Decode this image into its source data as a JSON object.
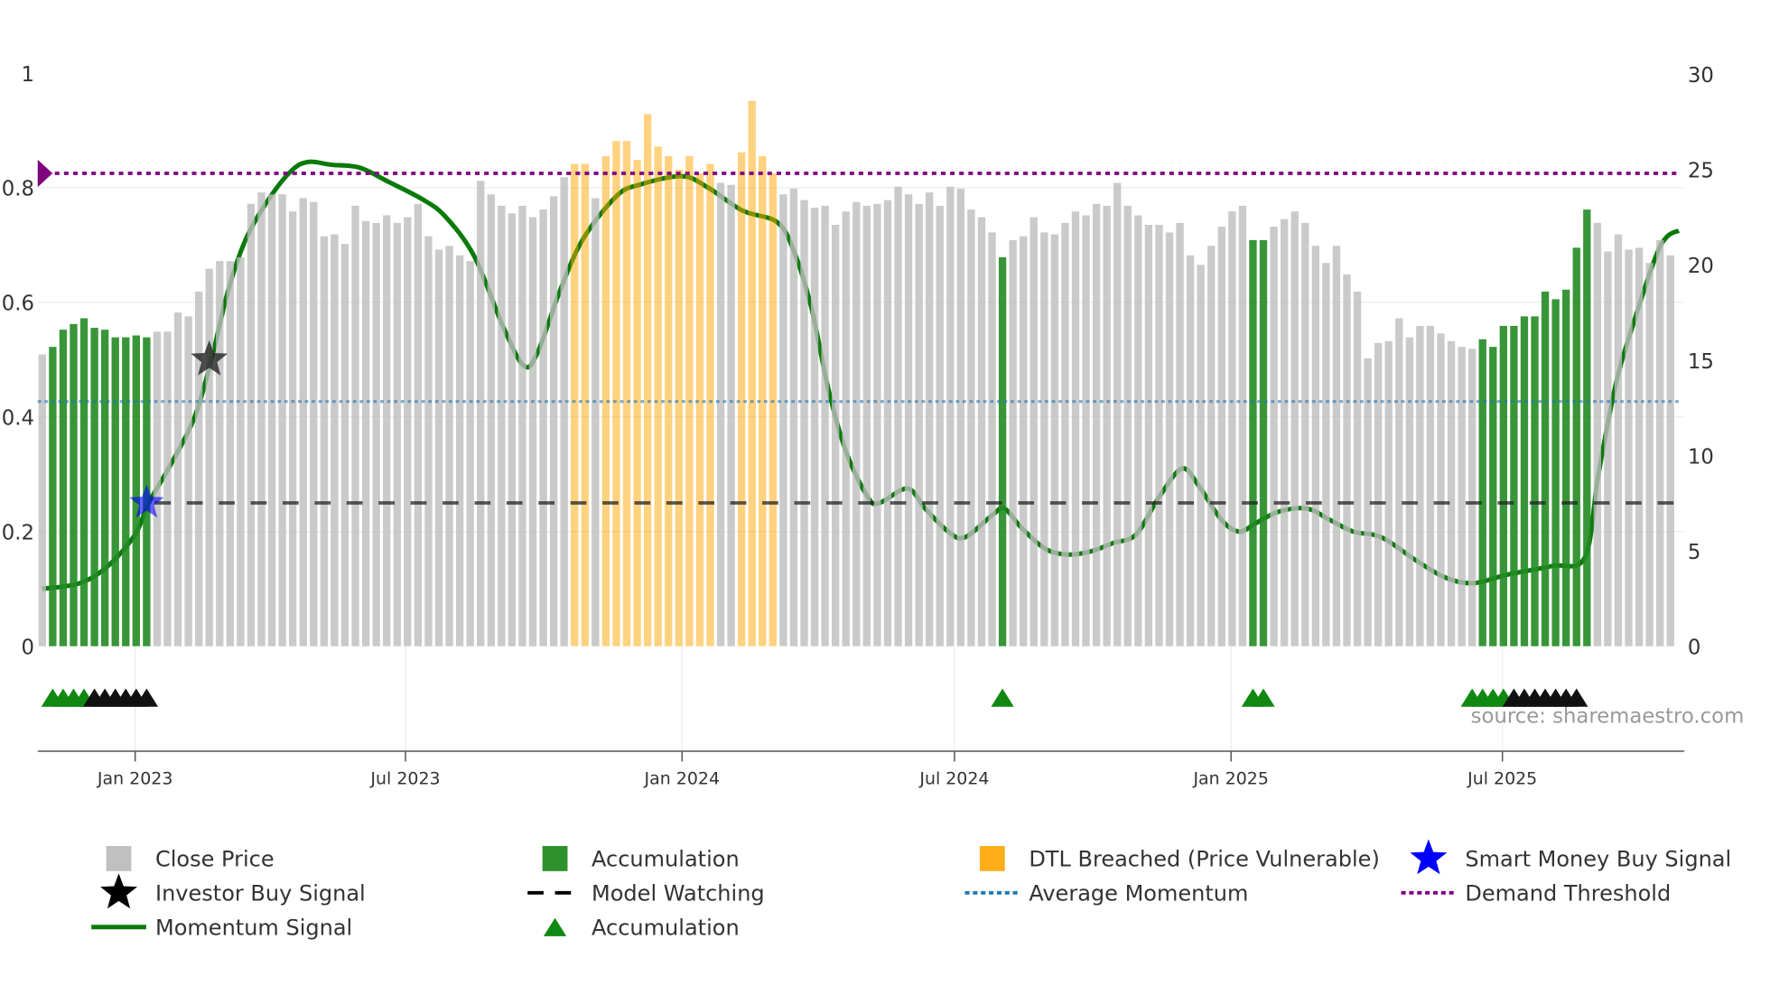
{
  "chart_data": {
    "type": "bar",
    "title": "",
    "source": "source: sharemaestro.com",
    "left_axis": {
      "range": [
        0,
        1
      ],
      "ticks": [
        "0",
        "0.2",
        "0.4",
        "0.6",
        "0.8",
        "1"
      ]
    },
    "right_axis": {
      "range": [
        0,
        30
      ],
      "ticks": [
        "0",
        "5",
        "10",
        "15",
        "20",
        "25",
        "30"
      ]
    },
    "x_ticks": [
      {
        "label": "Jan 2023",
        "week": 8.9
      },
      {
        "label": "Jul 2023",
        "week": 34.8
      },
      {
        "label": "Jan 2024",
        "week": 61.3
      },
      {
        "label": "Jul 2024",
        "week": 87.4
      },
      {
        "label": "Jan 2025",
        "week": 113.9
      },
      {
        "label": "Jul 2025",
        "week": 139.9
      }
    ],
    "bar_type_legend": {
      "c": "Close Price",
      "a": "Accumulation",
      "d": "DTL Breached (Price Vulnerable)"
    },
    "bar_types": "caaaaaaaaaaccccccccccccccccccccccccccccccccccccccccddcdddddddddddccddddcccccccccccccccccccccacccccccccccccccccccccccaaccccccccccccccccccccaaaaaaaaaaaccccccccc",
    "close_prices": [
      15.3,
      15.7,
      16.6,
      16.9,
      17.2,
      16.7,
      16.6,
      16.2,
      16.2,
      16.3,
      16.2,
      16.5,
      16.5,
      17.5,
      17.3,
      18.6,
      19.8,
      20.2,
      20.2,
      20.4,
      23.2,
      23.8,
      23.7,
      23.7,
      22.8,
      23.5,
      23.3,
      21.5,
      21.6,
      21.1,
      23.1,
      22.3,
      22.2,
      22.6,
      22.2,
      22.5,
      23.2,
      21.5,
      20.8,
      21.0,
      20.5,
      20.2,
      24.4,
      23.7,
      23.1,
      22.7,
      23.1,
      22.5,
      22.9,
      23.6,
      24.6,
      25.3,
      25.3,
      23.5,
      25.7,
      26.5,
      26.5,
      25.5,
      27.9,
      26.2,
      25.7,
      25.0,
      25.7,
      24.8,
      25.3,
      24.3,
      24.2,
      25.9,
      28.6,
      25.7,
      24.8,
      23.7,
      24.0,
      23.4,
      23.0,
      23.1,
      22.1,
      22.8,
      23.3,
      23.1,
      23.2,
      23.4,
      24.1,
      23.7,
      23.2,
      23.8,
      23.1,
      24.1,
      24.0,
      22.9,
      22.5,
      21.7,
      20.4,
      21.3,
      21.5,
      22.5,
      21.7,
      21.6,
      22.2,
      22.8,
      22.6,
      23.2,
      23.1,
      24.3,
      23.1,
      22.6,
      22.1,
      22.1,
      21.7,
      22.2,
      20.5,
      20.0,
      21.0,
      22.0,
      22.8,
      23.1,
      21.3,
      21.3,
      22.0,
      22.4,
      22.8,
      22.2,
      21.0,
      20.1,
      21.0,
      19.5,
      18.6,
      15.1,
      15.9,
      16.0,
      17.2,
      16.2,
      16.8,
      16.8,
      16.4,
      16.0,
      15.7,
      15.6,
      16.1,
      15.7,
      16.8,
      16.8,
      17.3,
      17.3,
      18.6,
      18.2,
      18.7,
      20.9,
      22.9,
      22.2,
      20.7,
      21.6,
      20.8,
      20.9,
      20.1,
      21.3,
      20.5
    ],
    "momentum": [
      [
        0,
        0.1
      ],
      [
        3.6,
        0.11
      ],
      [
        6.3,
        0.14
      ],
      [
        8.9,
        0.195
      ],
      [
        10.2,
        0.25
      ],
      [
        12.4,
        0.32
      ],
      [
        14.6,
        0.4
      ],
      [
        16.2,
        0.5
      ],
      [
        17.8,
        0.62
      ],
      [
        19.5,
        0.71
      ],
      [
        21.7,
        0.78
      ],
      [
        23.9,
        0.83
      ],
      [
        25.5,
        0.845
      ],
      [
        27.7,
        0.84
      ],
      [
        30.4,
        0.835
      ],
      [
        33.2,
        0.81
      ],
      [
        36.4,
        0.78
      ],
      [
        38.6,
        0.75
      ],
      [
        41.4,
        0.68
      ],
      [
        44.1,
        0.56
      ],
      [
        46.1,
        0.49
      ],
      [
        47.4,
        0.51
      ],
      [
        49.6,
        0.62
      ],
      [
        51.8,
        0.71
      ],
      [
        55.0,
        0.785
      ],
      [
        57.2,
        0.805
      ],
      [
        61.3,
        0.82
      ],
      [
        63.8,
        0.8
      ],
      [
        67.1,
        0.76
      ],
      [
        70.4,
        0.74
      ],
      [
        72.0,
        0.69
      ],
      [
        73.7,
        0.59
      ],
      [
        75.3,
        0.45
      ],
      [
        77.0,
        0.34
      ],
      [
        79.1,
        0.26
      ],
      [
        80.2,
        0.25
      ],
      [
        82.9,
        0.275
      ],
      [
        84.6,
        0.24
      ],
      [
        86.8,
        0.2
      ],
      [
        88.4,
        0.19
      ],
      [
        91.1,
        0.23
      ],
      [
        92.2,
        0.24
      ],
      [
        93.9,
        0.205
      ],
      [
        96.1,
        0.17
      ],
      [
        98.2,
        0.16
      ],
      [
        100.4,
        0.165
      ],
      [
        102.6,
        0.18
      ],
      [
        104.8,
        0.195
      ],
      [
        107.0,
        0.26
      ],
      [
        109.2,
        0.31
      ],
      [
        110.8,
        0.28
      ],
      [
        113.0,
        0.22
      ],
      [
        114.7,
        0.2
      ],
      [
        116.3,
        0.215
      ],
      [
        118.5,
        0.235
      ],
      [
        121.2,
        0.24
      ],
      [
        123.4,
        0.22
      ],
      [
        125.6,
        0.2
      ],
      [
        128.3,
        0.19
      ],
      [
        131.6,
        0.15
      ],
      [
        134.4,
        0.12
      ],
      [
        137.1,
        0.11
      ],
      [
        140.4,
        0.125
      ],
      [
        144.7,
        0.14
      ],
      [
        147.8,
        0.155
      ],
      [
        149.1,
        0.3
      ],
      [
        150.8,
        0.46
      ],
      [
        152.4,
        0.56
      ],
      [
        154.6,
        0.68
      ],
      [
        155.7,
        0.715
      ],
      [
        156.8,
        0.725
      ]
    ],
    "average_momentum": 0.427,
    "demand_threshold": 0.825,
    "model_watching": {
      "value": 0.25,
      "start_week": 11
    },
    "smart_money_buy": [
      {
        "week": 10,
        "value": 0.25
      }
    ],
    "investor_buy": [
      {
        "week": 16,
        "value": 0.5
      }
    ],
    "accumulation_markers": [
      1,
      2,
      3,
      4,
      92,
      116,
      117,
      137,
      138,
      139,
      140
    ],
    "watching_markers": [
      5,
      6,
      7,
      8,
      9,
      10,
      141,
      142,
      143,
      144,
      145,
      146,
      147
    ],
    "colors": {
      "close": "#bdbdbd",
      "accumulation": "#228b22",
      "dtl": "#ffa500",
      "momentum": "#0a7a0a",
      "avg": "#1f77b4",
      "threshold": "#800080",
      "smart": "#0000ff"
    },
    "legend": [
      {
        "label": "Close Price"
      },
      {
        "label": "Accumulation"
      },
      {
        "label": "DTL Breached (Price Vulnerable)"
      },
      {
        "label": "Smart Money Buy Signal"
      },
      {
        "label": "Investor Buy Signal"
      },
      {
        "label": "Model Watching"
      },
      {
        "label": "Average Momentum"
      },
      {
        "label": "Demand Threshold"
      },
      {
        "label": "Momentum Signal"
      },
      {
        "label": "Accumulation"
      }
    ]
  }
}
